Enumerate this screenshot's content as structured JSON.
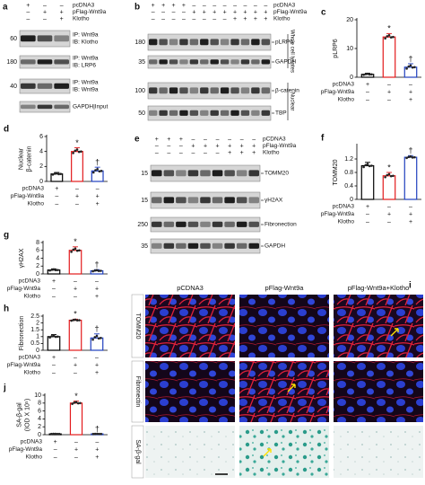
{
  "chart_data": [
    {
      "type": "bar",
      "panel": "c",
      "ylabel": [
        "pLRP6"
      ],
      "ylim": [
        0,
        20
      ],
      "yticks": [
        0,
        10,
        20
      ],
      "categories": [
        null,
        null,
        null
      ],
      "values": [
        1,
        14,
        3.5
      ],
      "errors": [
        0.4,
        1.2,
        1.2
      ],
      "colors": [
        "#000000",
        "#e31a1c",
        "#1f3fbf"
      ],
      "annotations": [
        null,
        "*",
        "†"
      ],
      "conditions": [
        {
          "label": "pcDNA3",
          "signs": [
            "+",
            "–",
            "–"
          ]
        },
        {
          "label": "pFlag-Wnt9a",
          "signs": [
            "–",
            "+",
            "+"
          ]
        },
        {
          "label": "Klotho",
          "signs": [
            "–",
            "–",
            "+"
          ]
        }
      ]
    },
    {
      "type": "bar",
      "panel": "d",
      "ylabel": [
        "Nuclear",
        "β-catenin"
      ],
      "ylim": [
        0,
        6
      ],
      "yticks": [
        0,
        2,
        4,
        6
      ],
      "categories": [
        null,
        null,
        null
      ],
      "values": [
        1,
        4,
        1.4
      ],
      "errors": [
        0.2,
        0.5,
        0.5
      ],
      "colors": [
        "#000000",
        "#e31a1c",
        "#1f3fbf"
      ],
      "annotations": [
        null,
        "*",
        "†"
      ],
      "conditions": [
        {
          "label": "pcDNA3",
          "signs": [
            "+",
            "–",
            "–"
          ]
        },
        {
          "label": "pFlag-Wnt9a",
          "signs": [
            "–",
            "+",
            "+"
          ]
        },
        {
          "label": "Klotho",
          "signs": [
            "–",
            "–",
            "+"
          ]
        }
      ]
    },
    {
      "type": "bar",
      "panel": "f",
      "ylabel": [
        "TOMM20"
      ],
      "ylim": [
        0,
        1.6
      ],
      "yticks": [
        0,
        0.4,
        0.8,
        1.2
      ],
      "categories": [
        null,
        null,
        null
      ],
      "values": [
        1.0,
        0.7,
        1.25
      ],
      "errors": [
        0.1,
        0.1,
        0.05
      ],
      "colors": [
        "#000000",
        "#e31a1c",
        "#1f3fbf"
      ],
      "annotations": [
        null,
        "*",
        "†"
      ],
      "conditions": [
        {
          "label": "pcDNA3",
          "signs": [
            "+",
            "–",
            "–"
          ]
        },
        {
          "label": "pFlag-Wnt9a",
          "signs": [
            "–",
            "+",
            "+"
          ]
        },
        {
          "label": "Klotho",
          "signs": [
            "–",
            "–",
            "+"
          ]
        }
      ]
    },
    {
      "type": "bar",
      "panel": "g",
      "ylabel": [
        "γH2AX"
      ],
      "ylim": [
        0,
        8
      ],
      "yticks": [
        0,
        2,
        4,
        6,
        8
      ],
      "categories": [
        null,
        null,
        null
      ],
      "values": [
        1,
        6,
        0.8
      ],
      "errors": [
        0.3,
        0.9,
        0.3
      ],
      "colors": [
        "#000000",
        "#e31a1c",
        "#1f3fbf"
      ],
      "annotations": [
        null,
        "*",
        "†"
      ],
      "conditions": [
        {
          "label": "pcDNA3",
          "signs": [
            "+",
            "–",
            "–"
          ]
        },
        {
          "label": "pFlag-Wnt9a",
          "signs": [
            "–",
            "+",
            "+"
          ]
        },
        {
          "label": "Klotho",
          "signs": [
            "–",
            "–",
            "+"
          ]
        }
      ]
    },
    {
      "type": "bar",
      "panel": "h",
      "ylabel": [
        "Fibronection"
      ],
      "ylim": [
        0,
        2.5
      ],
      "yticks": [
        0,
        0.5,
        1,
        1.5,
        2,
        2.5
      ],
      "categories": [
        null,
        null,
        null
      ],
      "values": [
        1,
        2.2,
        0.9
      ],
      "errors": [
        0.15,
        0.08,
        0.3
      ],
      "colors": [
        "#000000",
        "#e31a1c",
        "#1f3fbf"
      ],
      "annotations": [
        null,
        "*",
        "†"
      ],
      "conditions": [
        {
          "label": "pcDNA3",
          "signs": [
            "+",
            "–",
            "–"
          ]
        },
        {
          "label": "pFlag-Wnt9a",
          "signs": [
            "–",
            "+",
            "+"
          ]
        },
        {
          "label": "Klotho",
          "signs": [
            "–",
            "–",
            "+"
          ]
        }
      ]
    },
    {
      "type": "bar",
      "panel": "j",
      "ylabel": [
        "SA-β-gal",
        "(IOD X 10⁵)"
      ],
      "ylim": [
        0,
        10
      ],
      "yticks": [
        0,
        2,
        4,
        6,
        8,
        10
      ],
      "categories": [
        null,
        null,
        null
      ],
      "values": [
        0.2,
        8,
        0.2
      ],
      "errors": [
        0.05,
        0.5,
        0.05
      ],
      "colors": [
        "#000000",
        "#e31a1c",
        "#1f3fbf"
      ],
      "annotations": [
        null,
        "*",
        "†"
      ],
      "conditions": [
        {
          "label": "pcDNA3",
          "signs": [
            "+",
            "–",
            "–"
          ]
        },
        {
          "label": "pFlag-Wnt9a",
          "signs": [
            "–",
            "+",
            "+"
          ]
        },
        {
          "label": "Klotho",
          "signs": [
            "–",
            "–",
            "+"
          ]
        }
      ]
    }
  ],
  "blots": [
    {
      "panel": "a",
      "conditions": [
        {
          "label": "pcDNA3",
          "signs": [
            "+",
            "–",
            "–"
          ]
        },
        {
          "label": "pFlag-Wnt9a",
          "signs": [
            "–",
            "+",
            "+"
          ]
        },
        {
          "label": "Klotho",
          "signs": [
            "–",
            "–",
            "+"
          ]
        }
      ],
      "strips": [
        {
          "mw": "60",
          "label": [
            "IP: Wnt9a",
            "IB: Klotho"
          ]
        },
        {
          "mw": "180",
          "label": [
            "IP: Wnt9a",
            "IB: LRP6"
          ]
        },
        {
          "mw": "40",
          "label": [
            "IP: Wnt9a",
            "IB: Wnt9a"
          ]
        },
        {
          "mw": null,
          "label": [
            "GAPDH|Input"
          ]
        }
      ],
      "groups": []
    },
    {
      "panel": "b",
      "conditions": [
        {
          "label": "pcDNA3",
          "signs": [
            "+",
            "+",
            "+",
            "+",
            "–",
            "–",
            "–",
            "–",
            "–",
            "–",
            "–",
            "–"
          ]
        },
        {
          "label": "pFlag-Wnt9a",
          "signs": [
            "–",
            "–",
            "–",
            "–",
            "+",
            "+",
            "+",
            "+",
            "+",
            "+",
            "+",
            "+"
          ]
        },
        {
          "label": "Klotho",
          "signs": [
            "–",
            "–",
            "–",
            "–",
            "–",
            "–",
            "–",
            "–",
            "+",
            "+",
            "+",
            "+"
          ]
        }
      ],
      "strips": [
        {
          "mw": "180",
          "label": [
            "pLRP6"
          ]
        },
        {
          "mw": "35",
          "label": [
            "GAPDH"
          ]
        },
        {
          "mw": "100",
          "label": [
            "β-catenin"
          ]
        },
        {
          "mw": "50",
          "label": [
            "TBP"
          ]
        }
      ],
      "groups": [
        "Whole cell lysates",
        "Nuclear"
      ]
    },
    {
      "panel": "e",
      "conditions": [
        {
          "label": "pCDNA3",
          "signs": [
            "+",
            "+",
            "+",
            "–",
            "–",
            "–",
            "–",
            "–",
            "–"
          ]
        },
        {
          "label": "pFlag-Wnt9a",
          "signs": [
            "–",
            "–",
            "–",
            "+",
            "+",
            "+",
            "+",
            "+",
            "+"
          ]
        },
        {
          "label": "Klotho",
          "signs": [
            "–",
            "–",
            "–",
            "–",
            "–",
            "–",
            "+",
            "+",
            "+"
          ]
        }
      ],
      "strips": [
        {
          "mw": "15",
          "label": [
            "TOMM20"
          ]
        },
        {
          "mw": "15",
          "label": [
            "γH2AX"
          ]
        },
        {
          "mw": "250",
          "label": [
            "Fibronection"
          ]
        },
        {
          "mw": "35",
          "label": [
            "GAPDH"
          ]
        }
      ],
      "groups": []
    }
  ],
  "images": {
    "panel": "i",
    "columns": [
      "pCDNA3",
      "pFlag-Wnt9a",
      "pFlag-Wnt9a+Klotho"
    ],
    "rows": [
      "TOMM20",
      "Fibronectin",
      "SA-β-gal"
    ]
  }
}
